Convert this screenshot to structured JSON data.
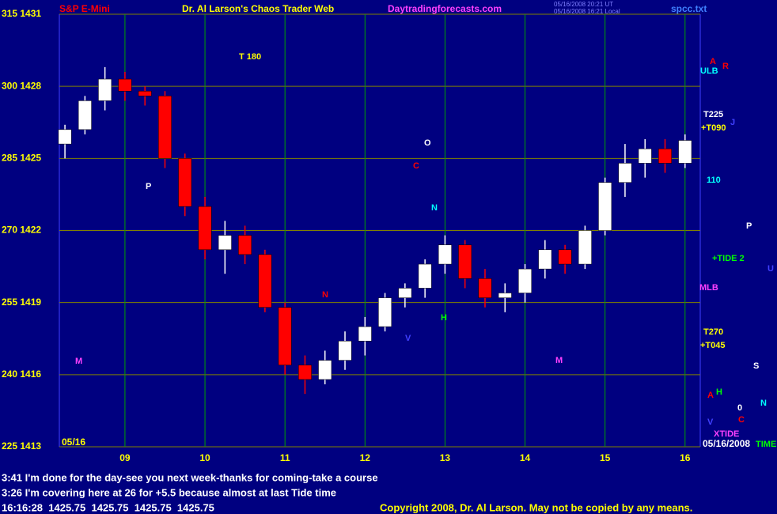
{
  "chart_data": {
    "type": "candlestick",
    "symbol": "S&P E-Mini",
    "title": "Dr. Al Larson's Chaos Trader Web",
    "site": "Daytradingforecasts.com",
    "file": "spcc.txt",
    "timestamps": [
      "05/16/2008 20:21 UT",
      "05/16/2008 16:21 Local"
    ],
    "x": [
      8.25,
      8.5,
      8.75,
      9.0,
      9.25,
      9.5,
      9.75,
      10.0,
      10.25,
      10.5,
      10.75,
      11.0,
      11.25,
      11.5,
      11.75,
      12.0,
      12.25,
      12.5,
      12.75,
      13.0,
      13.25,
      13.5,
      13.75,
      14.0,
      14.25,
      14.5,
      14.75,
      15.0,
      15.25,
      15.5,
      15.75,
      16.0
    ],
    "open": [
      1425.6,
      1426.2,
      1427.4,
      1428.3,
      1427.8,
      1427.6,
      1425.0,
      1423.0,
      1421.2,
      1421.8,
      1421.0,
      1418.8,
      1416.4,
      1415.8,
      1416.6,
      1417.4,
      1418.0,
      1419.2,
      1419.6,
      1420.6,
      1421.4,
      1420.0,
      1419.2,
      1419.4,
      1420.4,
      1421.2,
      1420.6,
      1422.0,
      1424.0,
      1424.8,
      1425.4,
      1424.8
    ],
    "high": [
      1426.4,
      1427.6,
      1428.8,
      1428.6,
      1428.0,
      1427.8,
      1425.2,
      1423.4,
      1422.4,
      1422.2,
      1421.2,
      1419.0,
      1416.8,
      1417.0,
      1417.8,
      1418.4,
      1419.4,
      1419.8,
      1420.8,
      1421.8,
      1421.6,
      1420.4,
      1419.8,
      1420.6,
      1421.6,
      1421.4,
      1422.2,
      1424.2,
      1425.6,
      1425.8,
      1425.8,
      1426.0
    ],
    "low": [
      1425.0,
      1426.0,
      1427.0,
      1427.4,
      1427.2,
      1424.6,
      1422.6,
      1420.8,
      1420.2,
      1420.6,
      1418.6,
      1416.0,
      1415.2,
      1415.6,
      1416.2,
      1416.8,
      1417.8,
      1418.8,
      1419.2,
      1420.2,
      1419.6,
      1418.8,
      1418.6,
      1419.0,
      1420.0,
      1420.2,
      1420.4,
      1421.8,
      1423.4,
      1424.2,
      1424.4,
      1424.6
    ],
    "close": [
      1426.2,
      1427.4,
      1428.3,
      1427.8,
      1427.6,
      1425.0,
      1423.0,
      1421.2,
      1421.8,
      1421.0,
      1418.8,
      1416.4,
      1415.8,
      1416.6,
      1417.4,
      1418.0,
      1419.2,
      1419.6,
      1420.6,
      1421.4,
      1420.0,
      1419.2,
      1419.4,
      1420.4,
      1421.2,
      1420.6,
      1422.0,
      1424.0,
      1424.8,
      1425.4,
      1424.8,
      1425.75
    ],
    "up_color": "#ffffff",
    "down_color": "#ff0000",
    "xlim": [
      8.18,
      16.19
    ],
    "ylim": [
      1413,
      1431
    ],
    "yticks": [
      {
        "value": 1413,
        "label": "225 1413"
      },
      {
        "value": 1416,
        "label": "240 1416"
      },
      {
        "value": 1419,
        "label": "255 1419"
      },
      {
        "value": 1422,
        "label": "270 1422"
      },
      {
        "value": 1425,
        "label": "285 1425"
      },
      {
        "value": 1428,
        "label": "300 1428"
      },
      {
        "value": 1431,
        "label": "315 1431"
      }
    ],
    "xticks": [
      {
        "value": 9,
        "label": "09"
      },
      10,
      11,
      12,
      13,
      14,
      15,
      16
    ],
    "grid": true,
    "date_left": "05/16",
    "date_right": "05/16/2008",
    "annotations": [
      "T 180",
      "ULB",
      "A",
      "R",
      "T225",
      "+T090",
      "J",
      "110",
      "P",
      "+TIDE 2",
      "U",
      "MLB",
      "T270",
      "+T045",
      "S",
      "H",
      "A",
      "0",
      "N",
      "C",
      "V",
      "XTIDE",
      "TIME",
      "P",
      "O",
      "C",
      "N",
      "H",
      "M",
      "M",
      "N",
      "V"
    ],
    "messages": [
      "3:41 I'm done for the day-see you next week-thanks for coming-take a course",
      "3:26 I'm covering here at 26 for +5.5 because almost at last Tide time"
    ],
    "quote": "16:16:28  1425.75  1425.75  1425.75  1425.75",
    "copyright": "Copyright 2008, Dr. Al Larson. May not be copied by any means."
  }
}
